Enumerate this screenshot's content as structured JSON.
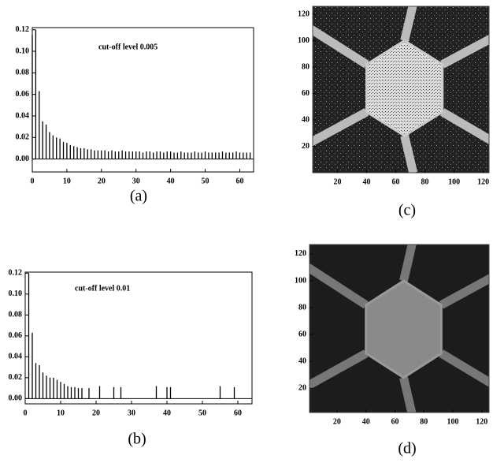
{
  "chart_data": [
    {
      "type": "spike",
      "label": "(a)",
      "annotation": "cut-off level 0.005",
      "color": "#000000",
      "x": [
        0,
        1,
        2,
        3,
        4,
        5,
        6,
        7,
        8,
        9,
        10,
        11,
        12,
        13,
        14,
        15,
        16,
        17,
        18,
        19,
        20,
        21,
        22,
        23,
        24,
        25,
        26,
        27,
        28,
        29,
        30,
        31,
        32,
        33,
        34,
        35,
        36,
        37,
        38,
        39,
        40,
        41,
        42,
        43,
        44,
        45,
        46,
        47,
        48,
        49,
        50,
        51,
        52,
        53,
        54,
        55,
        56,
        57,
        58,
        59,
        60,
        61,
        62,
        63
      ],
      "values": [
        0.115,
        0.12,
        0.063,
        0.035,
        0.032,
        0.025,
        0.022,
        0.02,
        0.019,
        0.016,
        0.015,
        0.013,
        0.012,
        0.011,
        0.01,
        0.01,
        0.009,
        0.009,
        0.008,
        0.008,
        0.008,
        0.008,
        0.007,
        0.008,
        0.007,
        0.007,
        0.008,
        0.007,
        0.007,
        0.007,
        0.007,
        0.007,
        0.006,
        0.007,
        0.007,
        0.006,
        0.007,
        0.007,
        0.006,
        0.007,
        0.007,
        0.006,
        0.006,
        0.007,
        0.006,
        0.006,
        0.006,
        0.007,
        0.006,
        0.006,
        0.007,
        0.006,
        0.006,
        0.006,
        0.006,
        0.007,
        0.006,
        0.006,
        0.006,
        0.007,
        0.006,
        0.006,
        0.006,
        0.006
      ],
      "xlim": [
        0,
        64
      ],
      "ylim": [
        -0.012,
        0.122
      ],
      "xticks": [
        0,
        10,
        20,
        30,
        40,
        50,
        60
      ],
      "yticks": [
        {
          "value": 0,
          "label": "0.00"
        },
        {
          "value": 0.02,
          "label": "0.02"
        },
        {
          "value": 0.04,
          "label": "0.04"
        },
        {
          "value": 0.06,
          "label": "0.06"
        },
        {
          "value": 0.08,
          "label": "0.08"
        },
        {
          "value": 0.1,
          "label": "0.10"
        },
        {
          "value": 0.12,
          "label": "0.12"
        }
      ]
    },
    {
      "type": "spike",
      "label": "(b)",
      "annotation": "cut-off level 0.01",
      "color": "#000000",
      "x": [
        1,
        2,
        3,
        4,
        5,
        6,
        7,
        8,
        9,
        10,
        11,
        12,
        13,
        14,
        15,
        16,
        18,
        21,
        25,
        27,
        37,
        40,
        41,
        55,
        59
      ],
      "values": [
        0.12,
        0.063,
        0.034,
        0.032,
        0.025,
        0.022,
        0.02,
        0.02,
        0.018,
        0.016,
        0.014,
        0.012,
        0.011,
        0.011,
        0.01,
        0.01,
        0.01,
        0.012,
        0.011,
        0.011,
        0.012,
        0.011,
        0.011,
        0.012,
        0.011
      ],
      "xlim": [
        0,
        64
      ],
      "ylim": [
        -0.005,
        0.121
      ],
      "xticks": [
        0,
        10,
        20,
        30,
        40,
        50,
        60
      ],
      "yticks": [
        {
          "value": 0,
          "label": "0.00"
        },
        {
          "value": 0.02,
          "label": "0.02"
        },
        {
          "value": 0.04,
          "label": "0.04"
        },
        {
          "value": 0.06,
          "label": "0.06"
        },
        {
          "value": 0.08,
          "label": "0.08"
        },
        {
          "value": 0.1,
          "label": "0.10"
        },
        {
          "value": 0.12,
          "label": "0.12"
        }
      ]
    },
    {
      "type": "image",
      "label": "(c)",
      "xlim": [
        3,
        124
      ],
      "ylim": [
        0,
        126
      ],
      "xticks": [
        20,
        40,
        60,
        80,
        100,
        120
      ],
      "yticks": [
        20,
        40,
        60,
        80,
        100,
        120
      ]
    },
    {
      "type": "image",
      "label": "(d)",
      "xlim": [
        1,
        125
      ],
      "ylim": [
        2,
        127
      ],
      "xticks": [
        20,
        40,
        60,
        80,
        100,
        120
      ],
      "yticks": [
        20,
        40,
        60,
        80,
        100,
        120
      ]
    }
  ]
}
